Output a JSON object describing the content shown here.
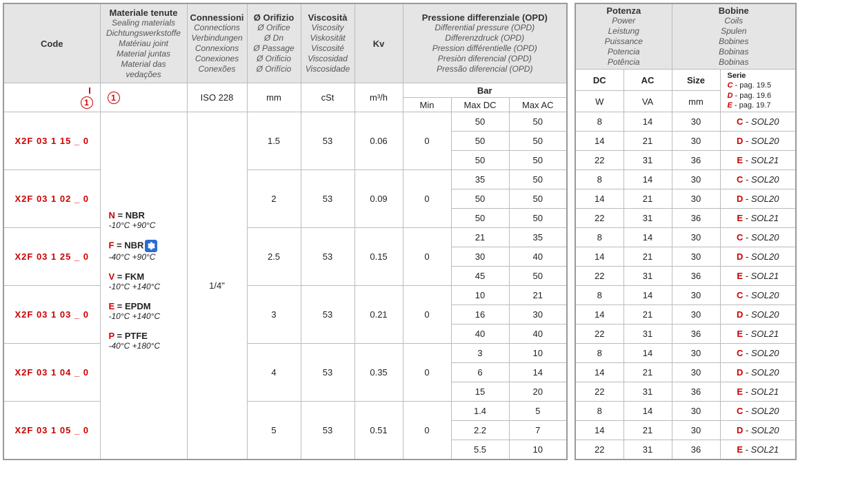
{
  "headers": {
    "code": "Code",
    "materials": {
      "main": "Materiale tenute",
      "subs": [
        "Sealing materials",
        "Dichtungswerkstoffe",
        "Matériau joint",
        "Material juntas",
        "Material das vedações"
      ]
    },
    "connections": {
      "main": "Connessioni",
      "subs": [
        "Connections",
        "Verbindungen",
        "Connexions",
        "Conexiones",
        "Conexões"
      ]
    },
    "orifice": {
      "main": "Ø Orifizio",
      "subs": [
        "Ø Orifice",
        "Ø Dn",
        "Ø Passage",
        "Ø Orificio",
        "Ø Orifício"
      ]
    },
    "viscosity": {
      "main": "Viscosità",
      "subs": [
        "Viscosity",
        "Viskosität",
        "Viscosité",
        "Viscosidad",
        "Viscosidade"
      ]
    },
    "kv": "Kv",
    "opd": {
      "main": "Pressione differenziale (OPD)",
      "subs": [
        "Differential pressure (OPD)",
        "Differenzdruck (OPD)",
        "Pression différentielle (OPD)",
        "Presiòn diferencial (OPD)",
        "Pressão diferencial (OPD)"
      ]
    },
    "power": {
      "main": "Potenza",
      "subs": [
        "Power",
        "Leistung",
        "Puissance",
        "Potencia",
        "Potência"
      ]
    },
    "coils": {
      "main": "Bobine",
      "subs": [
        "Coils",
        "Spulen",
        "Bobines",
        "Bobinas",
        "Bobinas"
      ]
    }
  },
  "units": {
    "iso": "ISO 228",
    "mm": "mm",
    "cst": "cSt",
    "m3h": "m³/h",
    "bar": "Bar",
    "min": "Min",
    "maxdc": "Max DC",
    "maxac": "Max AC",
    "dc": "DC",
    "ac": "AC",
    "w": "W",
    "va": "VA",
    "size": "Size",
    "sizemm": "mm",
    "serie": "Serie",
    "serieC": "C - pag. 19.5",
    "serieD": "D - pag. 19.6",
    "serieE": "E - pag. 19.7"
  },
  "ref": "1",
  "connection_value": "1/4\"",
  "materials_list": [
    {
      "key": "N",
      "name": "NBR",
      "snow": false,
      "temp": "-10°C   +90°C"
    },
    {
      "key": "F",
      "name": "NBR",
      "snow": true,
      "temp": "-40°C   +90°C"
    },
    {
      "key": "V",
      "name": "FKM",
      "snow": false,
      "temp": "-10°C   +140°C"
    },
    {
      "key": "E",
      "name": "EPDM",
      "snow": false,
      "temp": "-10°C   +140°C"
    },
    {
      "key": "P",
      "name": "PTFE",
      "snow": false,
      "temp": "-40°C   +180°C"
    }
  ],
  "rows": [
    {
      "code": "X2F 03 1 15 _ 0",
      "orifice": "1.5",
      "visc": "53",
      "kv": "0.06",
      "min": "0",
      "sub": [
        {
          "maxdc": "50",
          "maxac": "50",
          "w": "8",
          "va": "14",
          "size": "30",
          "sk": "C",
          "ss": "SOL20"
        },
        {
          "maxdc": "50",
          "maxac": "50",
          "w": "14",
          "va": "21",
          "size": "30",
          "sk": "D",
          "ss": "SOL20"
        },
        {
          "maxdc": "50",
          "maxac": "50",
          "w": "22",
          "va": "31",
          "size": "36",
          "sk": "E",
          "ss": "SOL21"
        }
      ]
    },
    {
      "code": "X2F 03 1 02 _ 0",
      "orifice": "2",
      "visc": "53",
      "kv": "0.09",
      "min": "0",
      "sub": [
        {
          "maxdc": "35",
          "maxac": "50",
          "w": "8",
          "va": "14",
          "size": "30",
          "sk": "C",
          "ss": "SOL20"
        },
        {
          "maxdc": "50",
          "maxac": "50",
          "w": "14",
          "va": "21",
          "size": "30",
          "sk": "D",
          "ss": "SOL20"
        },
        {
          "maxdc": "50",
          "maxac": "50",
          "w": "22",
          "va": "31",
          "size": "36",
          "sk": "E",
          "ss": "SOL21"
        }
      ]
    },
    {
      "code": "X2F 03 1 25 _ 0",
      "orifice": "2.5",
      "visc": "53",
      "kv": "0.15",
      "min": "0",
      "sub": [
        {
          "maxdc": "21",
          "maxac": "35",
          "w": "8",
          "va": "14",
          "size": "30",
          "sk": "C",
          "ss": "SOL20"
        },
        {
          "maxdc": "30",
          "maxac": "40",
          "w": "14",
          "va": "21",
          "size": "30",
          "sk": "D",
          "ss": "SOL20"
        },
        {
          "maxdc": "45",
          "maxac": "50",
          "w": "22",
          "va": "31",
          "size": "36",
          "sk": "E",
          "ss": "SOL21"
        }
      ]
    },
    {
      "code": "X2F 03 1 03 _ 0",
      "orifice": "3",
      "visc": "53",
      "kv": "0.21",
      "min": "0",
      "sub": [
        {
          "maxdc": "10",
          "maxac": "21",
          "w": "8",
          "va": "14",
          "size": "30",
          "sk": "C",
          "ss": "SOL20"
        },
        {
          "maxdc": "16",
          "maxac": "30",
          "w": "14",
          "va": "21",
          "size": "30",
          "sk": "D",
          "ss": "SOL20"
        },
        {
          "maxdc": "40",
          "maxac": "40",
          "w": "22",
          "va": "31",
          "size": "36",
          "sk": "E",
          "ss": "SOL21"
        }
      ]
    },
    {
      "code": "X2F 03 1 04 _ 0",
      "orifice": "4",
      "visc": "53",
      "kv": "0.35",
      "min": "0",
      "sub": [
        {
          "maxdc": "3",
          "maxac": "10",
          "w": "8",
          "va": "14",
          "size": "30",
          "sk": "C",
          "ss": "SOL20"
        },
        {
          "maxdc": "6",
          "maxac": "14",
          "w": "14",
          "va": "21",
          "size": "30",
          "sk": "D",
          "ss": "SOL20"
        },
        {
          "maxdc": "15",
          "maxac": "20",
          "w": "22",
          "va": "31",
          "size": "36",
          "sk": "E",
          "ss": "SOL21"
        }
      ]
    },
    {
      "code": "X2F 03 1 05 _ 0",
      "orifice": "5",
      "visc": "53",
      "kv": "0.51",
      "min": "0",
      "sub": [
        {
          "maxdc": "1.4",
          "maxac": "5",
          "w": "8",
          "va": "14",
          "size": "30",
          "sk": "C",
          "ss": "SOL20"
        },
        {
          "maxdc": "2.2",
          "maxac": "7",
          "w": "14",
          "va": "21",
          "size": "30",
          "sk": "D",
          "ss": "SOL20"
        },
        {
          "maxdc": "5.5",
          "maxac": "10",
          "w": "22",
          "va": "31",
          "size": "36",
          "sk": "E",
          "ss": "SOL21"
        }
      ]
    }
  ],
  "col_widths": {
    "t1": [
      140,
      126,
      80,
      78,
      78,
      70,
      70,
      84,
      84
    ],
    "t2": [
      70,
      70,
      70,
      110
    ]
  }
}
